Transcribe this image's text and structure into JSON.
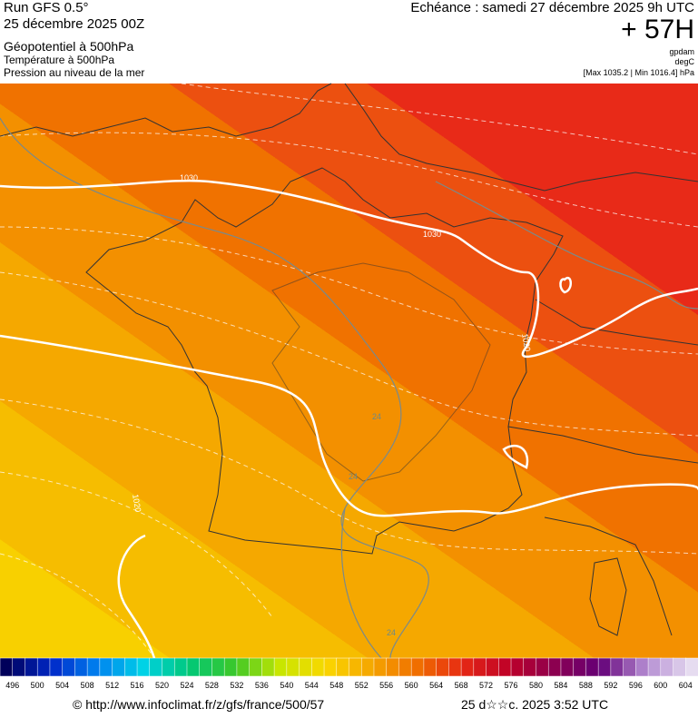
{
  "header": {
    "run": "Run GFS 0.5°",
    "run_date": "25 décembre 2025 00Z",
    "field_1": "Géopotentiel à 500hPa",
    "field_2": "Température à 500hPa",
    "field_3": "Pression au niveau de la mer",
    "valid_time": "Echéance : samedi 27 décembre 2025 9h UTC",
    "lead_time": "+ 57H",
    "unit_1": "gpdam",
    "unit_2": "degC",
    "pressure_range": "[Max 1035.2 | Min 1016.4] hPa"
  },
  "map": {
    "contour_labels": [
      "1030",
      "1030",
      "1020",
      "1020"
    ],
    "temperature_labels": [
      "24",
      "24",
      "24"
    ]
  },
  "legend": {
    "labels": [
      496,
      500,
      504,
      508,
      512,
      516,
      520,
      524,
      528,
      532,
      536,
      540,
      544,
      548,
      552,
      556,
      560,
      564,
      568,
      572,
      576,
      580,
      584,
      588,
      592,
      596,
      600,
      604
    ]
  },
  "footer": {
    "source": "© http://www.infoclimat.fr/z/gfs/france/500/57",
    "generated": "25 d☆☆c. 2025  3:52 UTC"
  }
}
